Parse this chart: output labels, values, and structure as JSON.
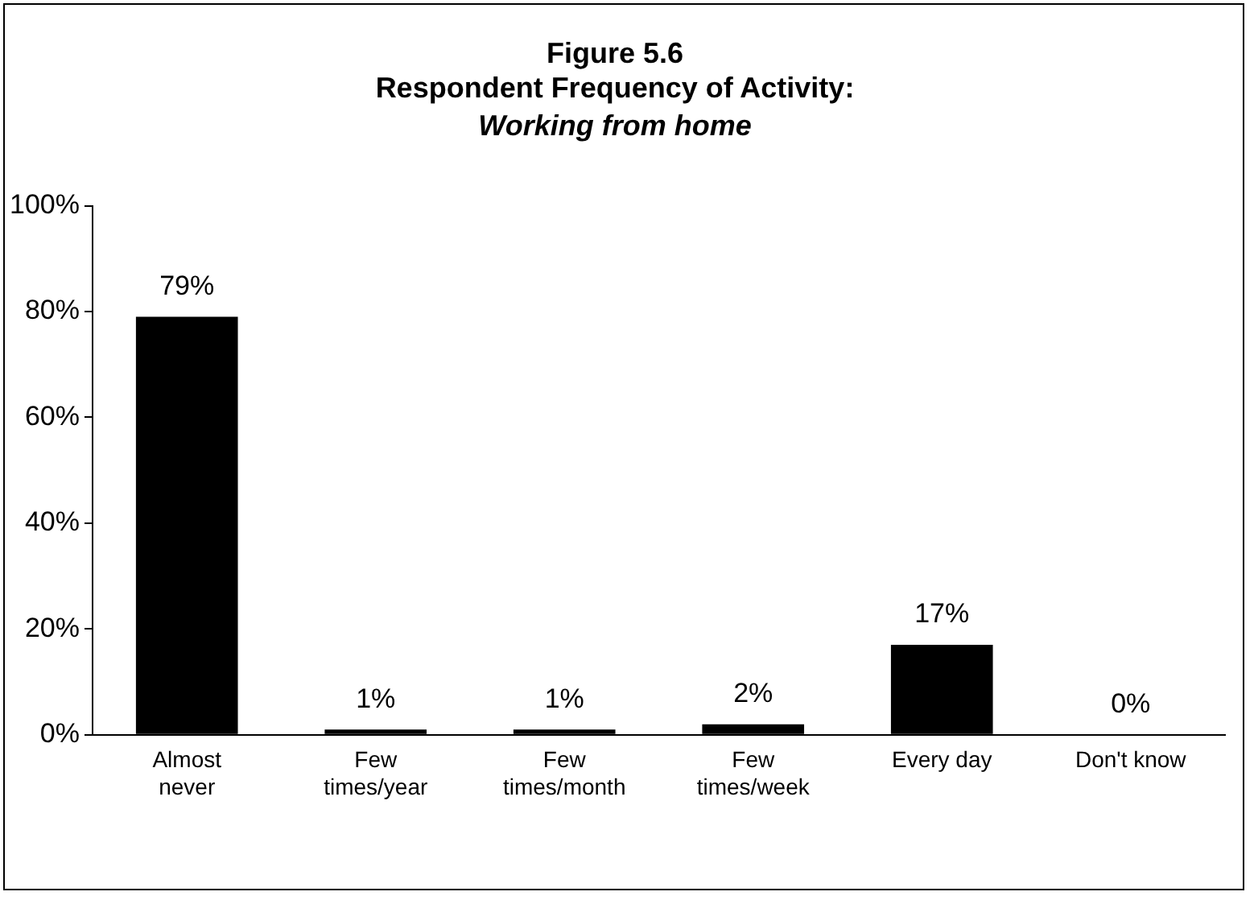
{
  "chart_data": {
    "type": "bar",
    "title": "Figure 5.6\nRespondent Frequency of Activity:",
    "subtitle": "Working from home",
    "categories": [
      "Almost never",
      "Few times/year",
      "Few times/month",
      "Few times/week",
      "Every day",
      "Don't know"
    ],
    "values": [
      79,
      1,
      1,
      2,
      17,
      0
    ],
    "color": "#000000",
    "data_labels": true,
    "value_labels": [
      "79%",
      "1%",
      "1%",
      "2%",
      "17%",
      "0%"
    ],
    "ylim": [
      0,
      100
    ],
    "yticks": [
      {
        "value": 0,
        "label": "0%"
      },
      {
        "value": 20,
        "label": "20%"
      },
      {
        "value": 40,
        "label": "40%"
      },
      {
        "value": 60,
        "label": "60%"
      },
      {
        "value": 80,
        "label": "80%"
      },
      {
        "value": 100,
        "label": "100%"
      }
    ],
    "grid": false,
    "legend": false
  }
}
